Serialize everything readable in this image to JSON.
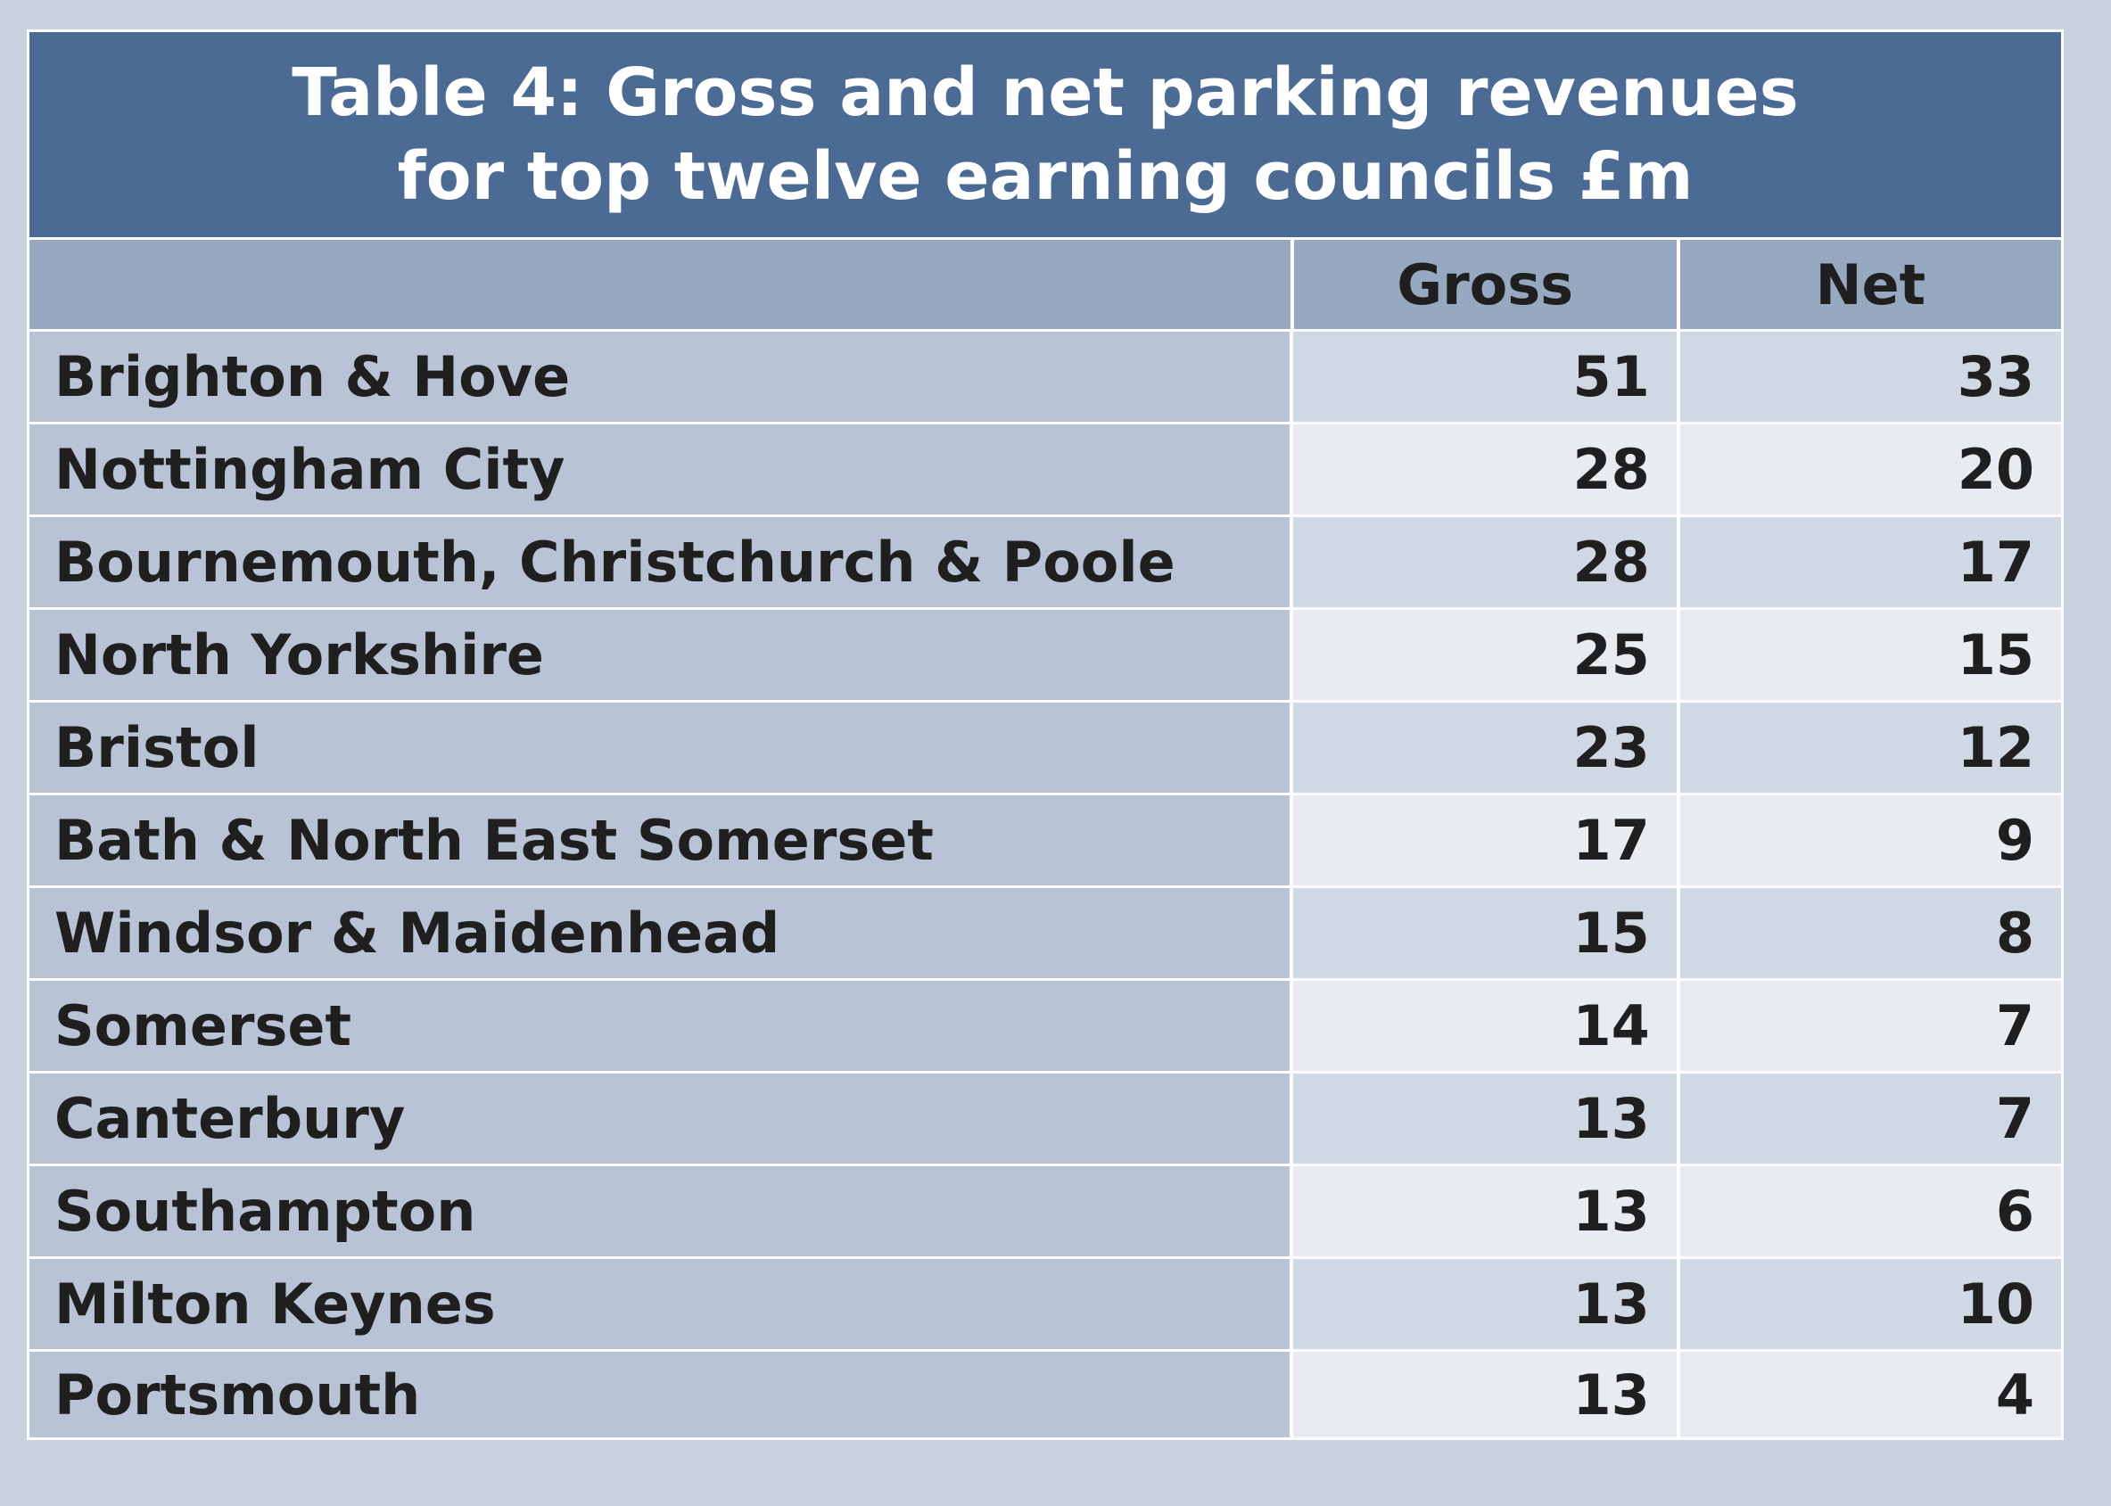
{
  "table": {
    "title_line1": "Table 4: Gross and net parking revenues",
    "title_line2": "for top twelve earning councils £m",
    "columns": [
      "",
      "Gross",
      "Net"
    ],
    "rows": [
      {
        "council": "Brighton & Hove",
        "gross": "51",
        "net": "33"
      },
      {
        "council": "Nottingham City",
        "gross": "28",
        "net": "20"
      },
      {
        "council": "Bournemouth, Christchurch & Poole",
        "gross": "28",
        "net": "17"
      },
      {
        "council": "North Yorkshire",
        "gross": "25",
        "net": "15"
      },
      {
        "council": "Bristol",
        "gross": "23",
        "net": "12"
      },
      {
        "council": "Bath & North East Somerset",
        "gross": "17",
        "net": "9"
      },
      {
        "council": "Windsor & Maidenhead",
        "gross": "15",
        "net": "8"
      },
      {
        "council": "Somerset",
        "gross": "14",
        "net": "7"
      },
      {
        "council": "Canterbury",
        "gross": "13",
        "net": "7"
      },
      {
        "council": "Southampton",
        "gross": "13",
        "net": "6"
      },
      {
        "council": "Milton Keynes",
        "gross": "13",
        "net": "10"
      },
      {
        "council": "Portsmouth",
        "gross": "13",
        "net": "4"
      }
    ]
  },
  "colors": {
    "page_background": "#c9d3df",
    "title_background": "#4b6b94",
    "header_background": "#97a8c1",
    "name_column_background": "#b8c4d6",
    "row_dark": "#d0d8e3",
    "row_light": "#e8ecf1"
  }
}
